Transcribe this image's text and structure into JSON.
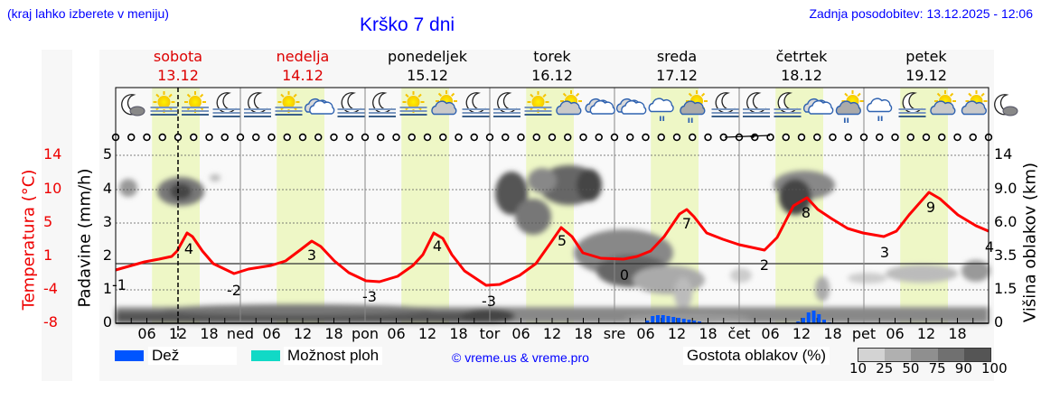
{
  "header": {
    "hint": "(kraj lahko izberete v meniju)",
    "title": "Krško 7 dni",
    "updated": "Zadnja posodobitev: 13.12.2025 - 12:06"
  },
  "days": [
    {
      "name": "sobota",
      "date": "13.12",
      "weekend": true
    },
    {
      "name": "nedelja",
      "date": "14.12",
      "weekend": true
    },
    {
      "name": "ponedeljek",
      "date": "15.12",
      "weekend": false
    },
    {
      "name": "torek",
      "date": "16.12",
      "weekend": false
    },
    {
      "name": "sreda",
      "date": "17.12",
      "weekend": false
    },
    {
      "name": "četrtek",
      "date": "18.12",
      "weekend": false
    },
    {
      "name": "petek",
      "date": "19.12",
      "weekend": false
    }
  ],
  "axes": {
    "temp_title": "Temperatura (°C)",
    "rain_title": "Padavine (mm/h)",
    "cloud_title": "Višina oblakov (km)",
    "temp_ticks": [
      "14",
      "10",
      "5",
      "1",
      "-4",
      "-8"
    ],
    "rain_ticks": [
      "5",
      "4",
      "3",
      "2",
      "1",
      "0"
    ],
    "cloud_ticks": [
      "14",
      "9.0",
      "6.0",
      "3.5",
      "1.5",
      "0"
    ],
    "x_ticks": [
      "06",
      "12",
      "18",
      "ned",
      "06",
      "12",
      "18",
      "pon",
      "06",
      "12",
      "18",
      "tor",
      "06",
      "12",
      "18",
      "sre",
      "06",
      "12",
      "18",
      "čet",
      "06",
      "12",
      "18",
      "pet",
      "06",
      "12",
      "18"
    ]
  },
  "weather_icons": [
    "moon-cloud",
    "sun-fog",
    "sun-fog",
    "moon-fog",
    "moon-fog",
    "sun-fog",
    "cloud",
    "moon-fog",
    "moon-fog",
    "sun-fog",
    "sun-cloud",
    "moon-fog",
    "moon-fog",
    "sun-fog",
    "sun-cloud",
    "cloud",
    "cloud",
    "cloud-rain",
    "sun-cloud-rain",
    "moon-fog",
    "moon-fog",
    "moon-fog",
    "cloud",
    "sun-cloud-rain",
    "cloud-rain",
    "moon-fog",
    "sun-cloud",
    "sun-cloud",
    "moon-cloud"
  ],
  "legend": {
    "rain_label": "Dež",
    "rain_color": "#0055ff",
    "shower_label": "Možnost ploh",
    "shower_color": "#11d9c6",
    "copyright": "© vreme.us & vreme.pro",
    "cloud_density_label": "Gostota oblakov (%)",
    "cloud_density_ticks": [
      "10",
      "25",
      "50",
      "75",
      "90",
      "100"
    ],
    "cloud_density_colors": [
      "#d3d3d3",
      "#b0b0b0",
      "#8f8f8f",
      "#707070",
      "#555555"
    ]
  },
  "colors": {
    "temperature_line": "#ff0000",
    "daylight_band": "#eef7c6",
    "plot_bg": "#f9f9f9",
    "title_blue": "#0000ff",
    "weekend_red": "#dd0000"
  },
  "chart_data": {
    "type": "line",
    "title": "Krško 7 dni",
    "xlabel": "",
    "ylabel": "Temperatura (°C)",
    "y2label": "Padavine (mm/h)",
    "y3label": "Višina oblakov (km)",
    "x_range": [
      "13.12 00:00",
      "20.12 00:00"
    ],
    "current_time_marker": "13.12 12:00",
    "series": [
      {
        "name": "Temperatura",
        "unit": "°C",
        "annotated_extremes": [
          {
            "time": "13.12 00:00",
            "value": -1
          },
          {
            "time": "13.12 14:00",
            "value": 4
          },
          {
            "time": "14.12 02:00",
            "value": -2
          },
          {
            "time": "14.12 13:00",
            "value": 3
          },
          {
            "time": "15.12 03:00",
            "value": -3
          },
          {
            "time": "15.12 14:00",
            "value": 4
          },
          {
            "time": "16.12 01:00",
            "value": -3
          },
          {
            "time": "16.12 13:00",
            "value": 5
          },
          {
            "time": "17.12 02:00",
            "value": 0
          },
          {
            "time": "17.12 14:00",
            "value": 7
          },
          {
            "time": "18.12 05:00",
            "value": 2
          },
          {
            "time": "18.12 14:00",
            "value": 8
          },
          {
            "time": "19.12 04:00",
            "value": 3
          },
          {
            "time": "19.12 14:00",
            "value": 9
          },
          {
            "time": "20.12 00:00",
            "value": 4
          }
        ]
      },
      {
        "name": "Dež",
        "unit": "mm/h",
        "note": "small bars near 0 around 17.12 06-14h and 18.12 12-16h",
        "peaks": [
          {
            "time": "17.12 09:00",
            "value": 0.3
          },
          {
            "time": "18.12 14:00",
            "value": 0.4
          }
        ]
      }
    ],
    "y_ranges": {
      "temperature": [
        -8,
        14
      ],
      "rain": [
        0,
        5
      ],
      "cloud_height_km": [
        0,
        14
      ]
    },
    "grid": true,
    "legend_position": "bottom"
  }
}
